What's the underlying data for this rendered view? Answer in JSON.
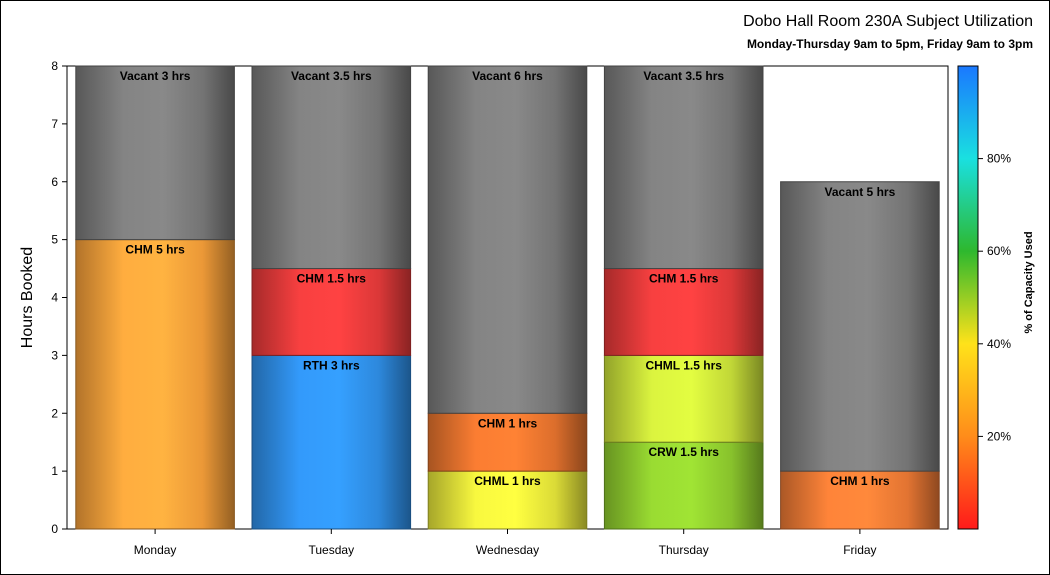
{
  "title": "Dobo Hall Room 230A Subject Utilization",
  "subtitle": "Monday-Thursday 9am to 5pm, Friday 9am to 3pm",
  "chart_data": {
    "type": "bar",
    "stacked": true,
    "categories": [
      "Monday",
      "Tuesday",
      "Wednesday",
      "Thursday",
      "Friday"
    ],
    "ylabel": "Hours Booked",
    "ylim": [
      0,
      8
    ],
    "yticks": [
      0,
      1,
      2,
      3,
      4,
      5,
      6,
      7,
      8
    ],
    "bars": [
      {
        "category": "Monday",
        "segments": [
          {
            "label": "CHM 5 hrs",
            "value": 5,
            "color": "#F7A03A"
          },
          {
            "label": "Vacant 3 hrs",
            "value": 3,
            "color": "#7A7A7A"
          }
        ]
      },
      {
        "category": "Tuesday",
        "segments": [
          {
            "label": "RTH 3 hrs",
            "value": 3,
            "color": "#2F8FE8"
          },
          {
            "label": "CHM 1.5 hrs",
            "value": 1.5,
            "color": "#E63B3B"
          },
          {
            "label": "Vacant 3.5 hrs",
            "value": 3.5,
            "color": "#7A7A7A"
          }
        ]
      },
      {
        "category": "Wednesday",
        "segments": [
          {
            "label": "CHML 1 hrs",
            "value": 1,
            "color": "#E6E63A"
          },
          {
            "label": "CHM 1 hrs",
            "value": 1,
            "color": "#E8742E"
          },
          {
            "label": "Vacant 6 hrs",
            "value": 6,
            "color": "#7A7A7A"
          }
        ]
      },
      {
        "category": "Thursday",
        "segments": [
          {
            "label": "CRW 1.5 hrs",
            "value": 1.5,
            "color": "#8FCC2E"
          },
          {
            "label": "CHML 1.5 hrs",
            "value": 1.5,
            "color": "#CBE23A"
          },
          {
            "label": "CHM 1.5 hrs",
            "value": 1.5,
            "color": "#E63B3B"
          },
          {
            "label": "Vacant 3.5 hrs",
            "value": 3.5,
            "color": "#7A7A7A"
          }
        ]
      },
      {
        "category": "Friday",
        "segments": [
          {
            "label": "CHM 1 hrs",
            "value": 1,
            "color": "#EE7A35"
          },
          {
            "label": "Vacant 5 hrs",
            "value": 5,
            "color": "#7A7A7A"
          }
        ]
      }
    ],
    "colorbar": {
      "label": "% of Capacity Used",
      "range": [
        0,
        100
      ],
      "ticks": [
        20,
        40,
        60,
        80
      ],
      "tick_labels": [
        "20%",
        "40%",
        "60%",
        "80%"
      ],
      "colors": [
        "#FF1A1A",
        "#FF8C1A",
        "#FFE21A",
        "#2EB82E",
        "#1AE0E0",
        "#1A78FF"
      ]
    }
  }
}
